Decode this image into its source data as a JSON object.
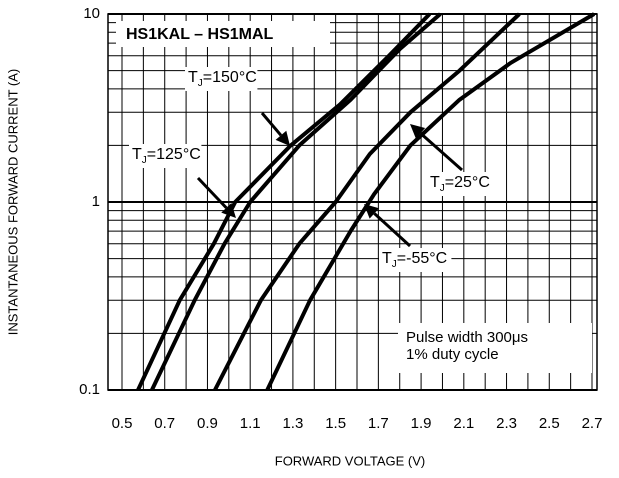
{
  "chart_data": {
    "type": "line",
    "title": "HS1KAL – HS1MAL",
    "xlabel": "FORWARD VOLTAGE (V)",
    "ylabel": "INSTANTANEOUS FORWARD CURRENT (A)",
    "xlim": [
      0.5,
      2.7
    ],
    "ylim": [
      0.1,
      10
    ],
    "ylog": true,
    "grid": true,
    "xticks": [
      0.5,
      0.7,
      0.9,
      1.1,
      1.3,
      1.5,
      1.7,
      1.9,
      2.1,
      2.3,
      2.5,
      2.7
    ],
    "xminor": [
      0.6,
      0.8,
      1.0,
      1.2,
      1.4,
      1.6,
      1.8,
      2.0,
      2.2,
      2.4,
      2.6
    ],
    "yticks": [
      0.1,
      1,
      10
    ],
    "yminor": [
      0.2,
      0.3,
      0.4,
      0.5,
      0.6,
      0.7,
      0.8,
      0.9,
      2,
      3,
      4,
      5,
      6,
      7,
      8,
      9
    ],
    "series": [
      {
        "label": [
          "T",
          "J",
          "=150°C"
        ],
        "color": "#000000",
        "x": [
          0.575,
          0.77,
          0.93,
          1.03,
          1.29,
          1.52,
          1.75,
          1.94
        ],
        "values": [
          0.1,
          0.3,
          0.6,
          1,
          2,
          3.3,
          6,
          10
        ]
      },
      {
        "label": [
          "T",
          "J",
          "=125°C"
        ],
        "color": "#000000",
        "x": [
          0.64,
          0.84,
          0.98,
          1.1,
          1.33,
          1.57,
          1.8,
          1.99
        ],
        "values": [
          0.1,
          0.3,
          0.6,
          1,
          2,
          3.5,
          6.5,
          10
        ]
      },
      {
        "label": [
          "T",
          "J",
          "=25°C"
        ],
        "color": "#000000",
        "x": [
          0.935,
          1.15,
          1.33,
          1.5,
          1.66,
          1.85,
          2.08,
          2.36
        ],
        "values": [
          0.1,
          0.3,
          0.6,
          1,
          1.8,
          3,
          5,
          10
        ]
      },
      {
        "label": [
          "T",
          "J",
          "=-55°C"
        ],
        "color": "#000000",
        "x": [
          1.18,
          1.38,
          1.57,
          1.68,
          1.85,
          2.08,
          2.32,
          2.71
        ],
        "values": [
          0.1,
          0.3,
          0.7,
          1.1,
          2,
          3.5,
          5.5,
          10
        ]
      }
    ],
    "note": [
      "Pulse width 300μs",
      "1% duty cycle"
    ]
  }
}
